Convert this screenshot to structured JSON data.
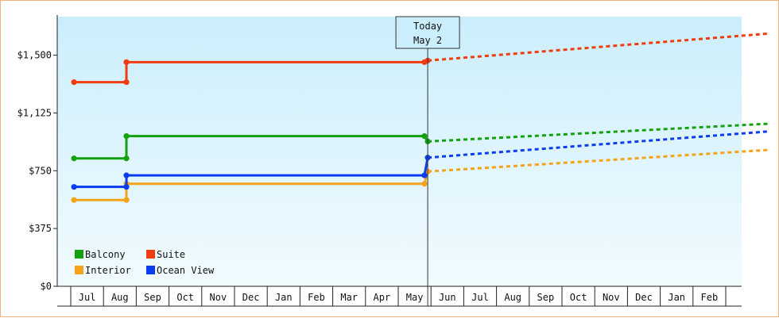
{
  "chart_data": {
    "type": "line",
    "title": "",
    "xlabel": "",
    "ylabel": "",
    "ylim": [
      0,
      1750
    ],
    "yticks": [
      {
        "value": 0,
        "label": "$0"
      },
      {
        "value": 375,
        "label": "$375"
      },
      {
        "value": 750,
        "label": "$750"
      },
      {
        "value": 1125,
        "label": "$1,125"
      },
      {
        "value": 1500,
        "label": "$1,500"
      }
    ],
    "x_tick_labels": [
      "Jul",
      "Aug",
      "Sep",
      "Oct",
      "Nov",
      "Dec",
      "Jan",
      "Feb",
      "Mar",
      "Apr",
      "May",
      "Jun",
      "Jul",
      "Aug",
      "Sep",
      "Oct",
      "Nov",
      "Dec",
      "Jan",
      "Feb"
    ],
    "today_marker": {
      "line1": "Today",
      "line2": "May 2",
      "x": 10.4
    },
    "legend_position": "bottom-left",
    "grid": false,
    "series": [
      {
        "name": "Balcony",
        "color": "#13a10e",
        "points": [
          [
            -0.4,
            830
          ],
          [
            1.2,
            830
          ],
          [
            1.2,
            975
          ],
          [
            10.3,
            975
          ],
          [
            10.4,
            940
          ]
        ],
        "forecast": [
          [
            10.4,
            940
          ],
          [
            20.8,
            1055
          ]
        ]
      },
      {
        "name": "Suite",
        "color": "#f03c0f",
        "points": [
          [
            -0.4,
            1325
          ],
          [
            1.2,
            1325
          ],
          [
            1.2,
            1455
          ],
          [
            10.3,
            1455
          ],
          [
            10.4,
            1465
          ]
        ],
        "forecast": [
          [
            10.4,
            1465
          ],
          [
            20.8,
            1640
          ]
        ]
      },
      {
        "name": "Interior",
        "color": "#f5a31a",
        "points": [
          [
            -0.4,
            560
          ],
          [
            1.2,
            560
          ],
          [
            1.2,
            665
          ],
          [
            10.3,
            665
          ],
          [
            10.4,
            745
          ]
        ],
        "forecast": [
          [
            10.4,
            745
          ],
          [
            20.8,
            885
          ]
        ]
      },
      {
        "name": "Ocean View",
        "color": "#0a3cf0",
        "points": [
          [
            -0.4,
            645
          ],
          [
            1.2,
            645
          ],
          [
            1.2,
            720
          ],
          [
            10.3,
            720
          ],
          [
            10.4,
            835
          ]
        ],
        "forecast": [
          [
            10.4,
            835
          ],
          [
            20.8,
            1005
          ]
        ]
      }
    ]
  }
}
